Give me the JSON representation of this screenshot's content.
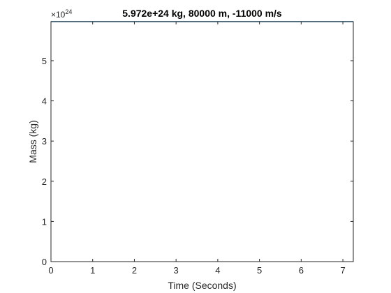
{
  "chart_data": {
    "type": "line",
    "title": "5.972e+24 kg, 80000 m, -11000 m/s",
    "xlabel": "Time (Seconds)",
    "ylabel": "Mass (kg)",
    "xlim": [
      0,
      7.25
    ],
    "ylim": [
      0,
      5.972
    ],
    "x_ticks": [
      0,
      1,
      2,
      3,
      4,
      5,
      6,
      7
    ],
    "x_tick_labels": [
      "0",
      "1",
      "2",
      "3",
      "4",
      "5",
      "6",
      "7"
    ],
    "y_ticks": [
      0,
      1,
      2,
      3,
      4,
      5
    ],
    "y_tick_labels": [
      "0",
      "1",
      "2",
      "3",
      "4",
      "5"
    ],
    "y_exponent_base": "×10",
    "y_exponent_power": "24",
    "grid": false,
    "series": [
      {
        "x": [
          0,
          7.25
        ],
        "y": [
          5.972,
          5.972
        ],
        "color": "#0072bd"
      }
    ],
    "colors": {
      "axis": "#262626",
      "line": "#0072bd",
      "background": "#ffffff"
    }
  }
}
